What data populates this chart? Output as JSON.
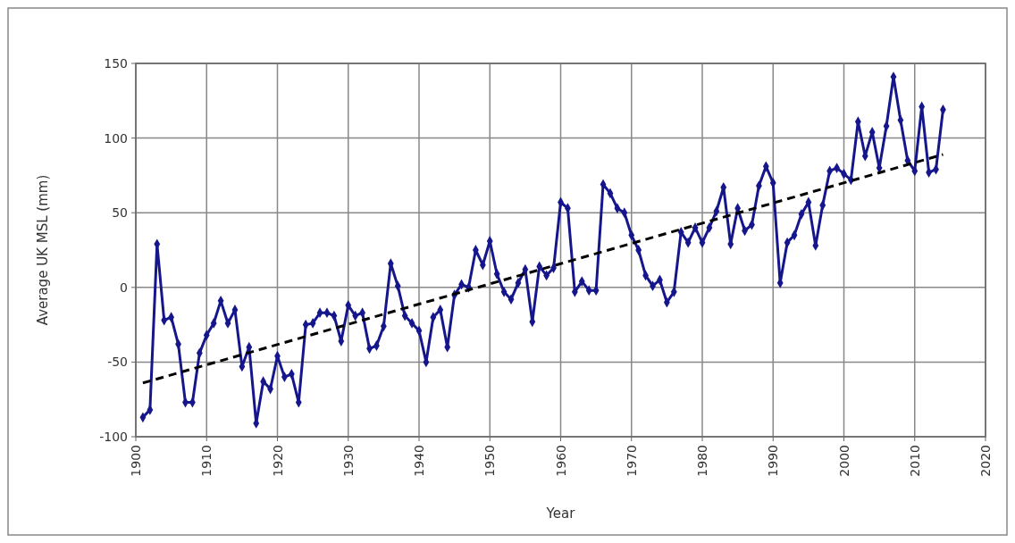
{
  "chart_data": {
    "type": "line",
    "xlabel": "Year",
    "ylabel": "Average UK MSL (mm)",
    "xlim": [
      1900,
      2020
    ],
    "xticks": [
      1900,
      1910,
      1920,
      1930,
      1940,
      1950,
      1960,
      1970,
      1980,
      1990,
      2000,
      2010,
      2020
    ],
    "ylim": [
      -100,
      150
    ],
    "yticks": [
      -100,
      -50,
      0,
      50,
      100,
      150
    ],
    "grid": true,
    "series": [
      {
        "color": "#16168c",
        "marker": "diamond",
        "line_style": "solid",
        "x": [
          1901,
          1902,
          1903,
          1904,
          1905,
          1906,
          1907,
          1908,
          1909,
          1910,
          1911,
          1912,
          1913,
          1914,
          1915,
          1916,
          1917,
          1918,
          1919,
          1920,
          1921,
          1922,
          1923,
          1924,
          1925,
          1926,
          1927,
          1928,
          1929,
          1930,
          1931,
          1932,
          1933,
          1934,
          1935,
          1936,
          1937,
          1938,
          1939,
          1940,
          1941,
          1942,
          1943,
          1944,
          1945,
          1946,
          1947,
          1948,
          1949,
          1950,
          1951,
          1952,
          1953,
          1954,
          1955,
          1956,
          1957,
          1958,
          1959,
          1960,
          1961,
          1962,
          1963,
          1964,
          1965,
          1966,
          1967,
          1968,
          1969,
          1970,
          1971,
          1972,
          1973,
          1974,
          1975,
          1976,
          1977,
          1978,
          1979,
          1980,
          1981,
          1982,
          1983,
          1984,
          1985,
          1986,
          1987,
          1988,
          1989,
          1990,
          1991,
          1992,
          1993,
          1994,
          1995,
          1996,
          1997,
          1998,
          1999,
          2000,
          2001,
          2002,
          2003,
          2004,
          2005,
          2006,
          2007,
          2008,
          2009,
          2010,
          2011,
          2012,
          2013,
          2014
        ],
        "values": [
          -87,
          -82,
          29,
          -22,
          -20,
          -38,
          -77,
          -77,
          -44,
          -32,
          -24,
          -9,
          -24,
          -15,
          -53,
          -40,
          -91,
          -63,
          -68,
          -46,
          -60,
          -58,
          -77,
          -25,
          -24,
          -17,
          -17,
          -19,
          -36,
          -12,
          -19,
          -17,
          -41,
          -39,
          -26,
          16,
          1,
          -19,
          -24,
          -29,
          -50,
          -20,
          -15,
          -40,
          -5,
          2,
          0,
          25,
          15,
          31,
          9,
          -3,
          -8,
          3,
          12,
          -23,
          14,
          8,
          13,
          57,
          53,
          -3,
          4,
          -2,
          -2,
          69,
          63,
          53,
          50,
          35,
          25,
          8,
          1,
          5,
          -10,
          -3,
          37,
          30,
          40,
          30,
          40,
          51,
          67,
          29,
          53,
          38,
          42,
          68,
          81,
          70,
          3,
          30,
          35,
          49,
          57,
          28,
          55,
          78,
          80,
          76,
          72,
          111,
          88,
          104,
          80,
          108,
          141,
          112,
          85,
          78,
          121,
          77,
          79,
          119
        ]
      },
      {
        "color": "#000000",
        "marker": "none",
        "line_style": "dashed",
        "x": [
          1901,
          2014
        ],
        "values": [
          -64,
          89
        ]
      }
    ]
  }
}
